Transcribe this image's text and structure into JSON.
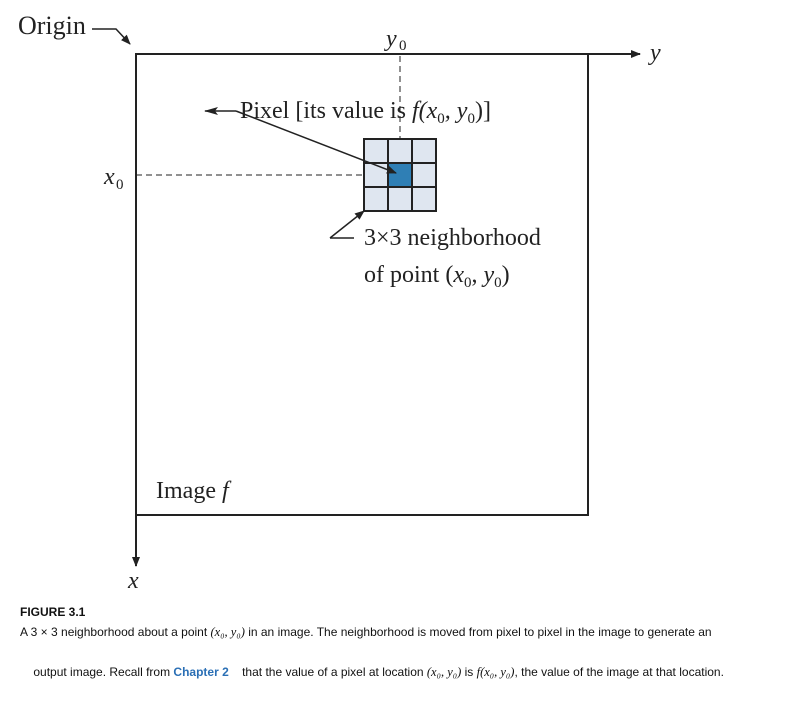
{
  "diagram": {
    "origin_label": "Origin",
    "y_axis_label": "y",
    "x_axis_label": "x",
    "y0_label": "y",
    "y0_sub": "0",
    "x0_label": "x",
    "x0_sub": "0",
    "pixel_label": "Pixel [its value is ",
    "pixel_label_math": "f(x",
    "pixel_label_rest": ", y",
    "pixel_label_end": ")]",
    "neighborhood_line1": "3×3 neighborhood",
    "neighborhood_line2_text": "of point (",
    "neighborhood_line2_math": "x",
    "neighborhood_line2_mid": ", ",
    "neighborhood_line2_math2": "y",
    "neighborhood_line2_end": ")",
    "image_label": "Image ",
    "image_label_math": "f",
    "colors": {
      "center_pixel": "#2f7fb5",
      "neighbor_pixel": "#dfe6f0",
      "lines": "#222222"
    }
  },
  "caption": {
    "figure_title": "FIGURE 3.1",
    "line1_a": "A 3 × 3 neighborhood about a point ",
    "line1_math": "(x₀, y₀)",
    "line1_b": " in an image. The neighborhood is moved from pixel to pixel in the image to generate an",
    "line2_a": "output image. Recall from ",
    "line2_link": "Chapter 2",
    "line2_b": "    that the value of a pixel at location ",
    "line2_math1": "(x₀, y₀)",
    "line2_c": " is ",
    "line2_math2": "f(x₀, y₀)",
    "line2_d": ", the value of the image at that location."
  }
}
